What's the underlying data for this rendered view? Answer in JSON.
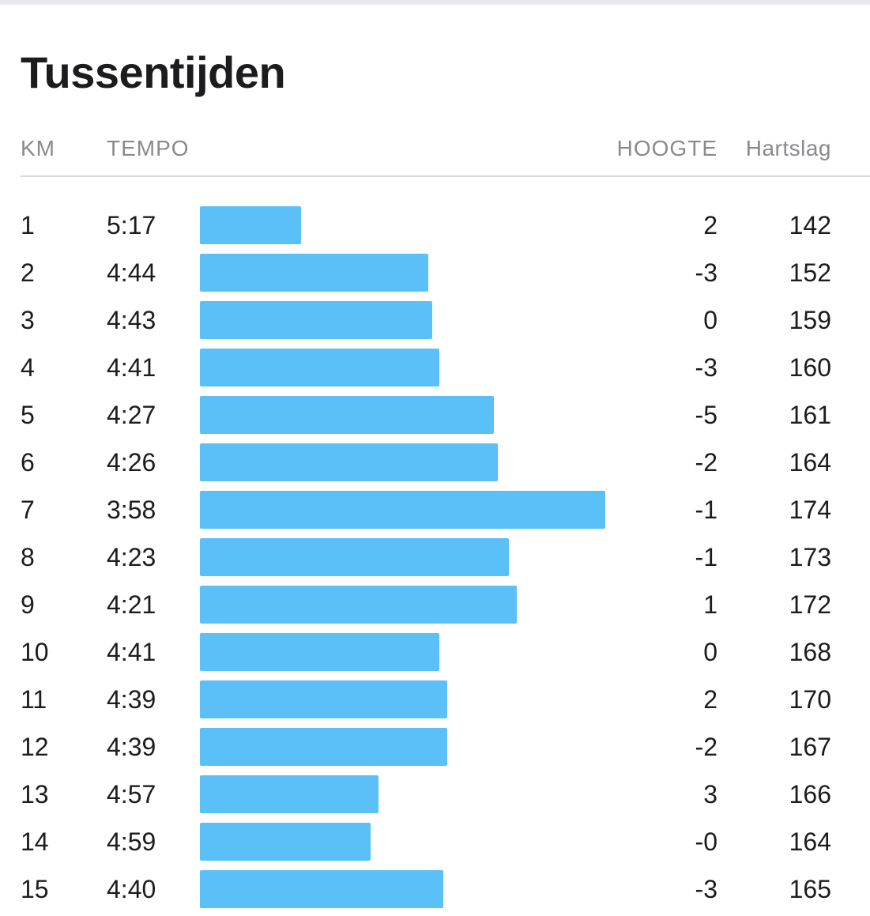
{
  "title": "Tussentijden",
  "columns": {
    "km": "KM",
    "tempo": "TEMPO",
    "hoogte": "HOOGTE",
    "hartslag": "Hartslag"
  },
  "colors": {
    "bar": "#5bbff8",
    "header_text": "#8a8a8e",
    "text": "#1c1c1e"
  },
  "splits": [
    {
      "km": "1",
      "tempo": "5:17",
      "hoogte": "2",
      "hartslag": "142"
    },
    {
      "km": "2",
      "tempo": "4:44",
      "hoogte": "-3",
      "hartslag": "152"
    },
    {
      "km": "3",
      "tempo": "4:43",
      "hoogte": "0",
      "hartslag": "159"
    },
    {
      "km": "4",
      "tempo": "4:41",
      "hoogte": "-3",
      "hartslag": "160"
    },
    {
      "km": "5",
      "tempo": "4:27",
      "hoogte": "-5",
      "hartslag": "161"
    },
    {
      "km": "6",
      "tempo": "4:26",
      "hoogte": "-2",
      "hartslag": "164"
    },
    {
      "km": "7",
      "tempo": "3:58",
      "hoogte": "-1",
      "hartslag": "174"
    },
    {
      "km": "8",
      "tempo": "4:23",
      "hoogte": "-1",
      "hartslag": "173"
    },
    {
      "km": "9",
      "tempo": "4:21",
      "hoogte": "1",
      "hartslag": "172"
    },
    {
      "km": "10",
      "tempo": "4:41",
      "hoogte": "0",
      "hartslag": "168"
    },
    {
      "km": "11",
      "tempo": "4:39",
      "hoogte": "2",
      "hartslag": "170"
    },
    {
      "km": "12",
      "tempo": "4:39",
      "hoogte": "-2",
      "hartslag": "167"
    },
    {
      "km": "13",
      "tempo": "4:57",
      "hoogte": "3",
      "hartslag": "166"
    },
    {
      "km": "14",
      "tempo": "4:59",
      "hoogte": "-0",
      "hartslag": "164"
    },
    {
      "km": "15",
      "tempo": "4:40",
      "hoogte": "-3",
      "hartslag": "165"
    }
  ]
}
